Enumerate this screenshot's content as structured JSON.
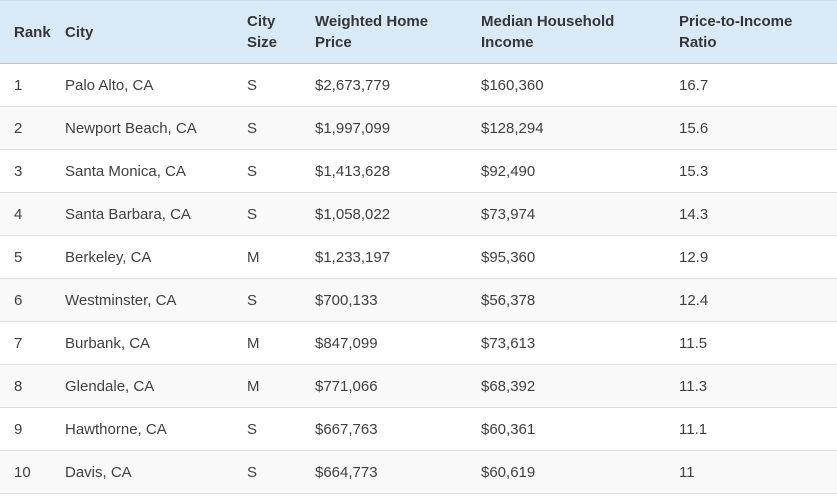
{
  "chart_data": {
    "type": "table",
    "title": "",
    "columns": [
      "Rank",
      "City",
      "City Size",
      "Weighted Home Price",
      "Median Household Income",
      "Price-to-Income Ratio"
    ],
    "column_keys": [
      "rank",
      "city",
      "size",
      "price",
      "income",
      "ratio"
    ],
    "rows": [
      [
        "1",
        "Palo Alto, CA",
        "S",
        "$2,673,779",
        "$160,360",
        "16.7"
      ],
      [
        "2",
        "Newport Beach, CA",
        "S",
        "$1,997,099",
        "$128,294",
        "15.6"
      ],
      [
        "3",
        "Santa Monica, CA",
        "S",
        "$1,413,628",
        "$92,490",
        "15.3"
      ],
      [
        "4",
        "Santa Barbara, CA",
        "S",
        "$1,058,022",
        "$73,974",
        "14.3"
      ],
      [
        "5",
        "Berkeley, CA",
        "M",
        "$1,233,197",
        "$95,360",
        "12.9"
      ],
      [
        "6",
        "Westminster, CA",
        "S",
        "$700,133",
        "$56,378",
        "12.4"
      ],
      [
        "7",
        "Burbank, CA",
        "M",
        "$847,099",
        "$73,613",
        "11.5"
      ],
      [
        "8",
        "Glendale, CA",
        "M",
        "$771,066",
        "$68,392",
        "11.3"
      ],
      [
        "9",
        "Hawthorne, CA",
        "S",
        "$667,763",
        "$60,361",
        "11.1"
      ],
      [
        "10",
        "Davis, CA",
        "S",
        "$664,773",
        "$60,619",
        "11"
      ]
    ]
  },
  "colors": {
    "header_background": "#d9eaf6",
    "stripe_background": "#f9f9f9",
    "row_border": "#dddddd",
    "header_border": "#c3c3c3",
    "text": "#404040"
  }
}
